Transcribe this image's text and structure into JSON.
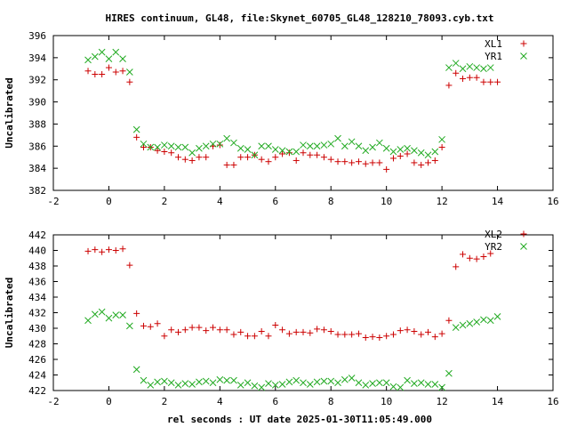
{
  "title": "HIRES continuum, GL48, file:Skynet_60705_GL48_128210_78093.cyb.txt",
  "xlabel": "rel seconds : UT date 2025-01-30T11:05:49.000",
  "colors": {
    "L": "#cc0000",
    "R": "#22aa22"
  },
  "chart_data": [
    {
      "type": "scatter",
      "ylabel": "Uncalibrated",
      "xlim": [
        -2,
        16
      ],
      "ylim": [
        382,
        396
      ],
      "xticks": [
        "-2",
        "0",
        "2",
        "4",
        "6",
        "8",
        "10",
        "12",
        "14",
        "16"
      ],
      "yticks": [
        "382",
        "384",
        "386",
        "388",
        "390",
        "392",
        "394",
        "396"
      ],
      "series": [
        {
          "name": "XL1",
          "marker": "plus",
          "x": [
            -0.75,
            -0.5,
            -0.25,
            0.0,
            0.25,
            0.5,
            0.75,
            1.0,
            1.25,
            1.5,
            1.75,
            2.0,
            2.25,
            2.5,
            2.75,
            3.0,
            3.25,
            3.5,
            3.75,
            4.0,
            4.25,
            4.5,
            4.75,
            5.0,
            5.25,
            5.5,
            5.75,
            6.0,
            6.25,
            6.5,
            6.75,
            7.0,
            7.25,
            7.5,
            7.75,
            8.0,
            8.25,
            8.5,
            8.75,
            9.0,
            9.25,
            9.5,
            9.75,
            10.0,
            10.25,
            10.5,
            10.75,
            11.0,
            11.25,
            11.5,
            11.75,
            12.0,
            12.25,
            12.5,
            12.75,
            13.0,
            13.25,
            13.5,
            13.75,
            14.0
          ],
          "y": [
            392.8,
            392.5,
            392.5,
            393.1,
            392.7,
            392.8,
            391.8,
            386.8,
            385.9,
            385.9,
            385.6,
            385.5,
            385.4,
            385.0,
            384.8,
            384.7,
            385.0,
            385.0,
            386.0,
            386.1,
            384.3,
            384.3,
            385.0,
            385.0,
            385.2,
            384.8,
            384.6,
            385.0,
            385.3,
            385.4,
            384.7,
            385.4,
            385.2,
            385.2,
            385.0,
            384.8,
            384.6,
            384.6,
            384.5,
            384.6,
            384.4,
            384.5,
            384.5,
            383.9,
            384.9,
            385.1,
            385.3,
            384.5,
            384.3,
            384.5,
            384.7,
            385.9,
            391.5,
            392.6,
            392.1,
            392.2,
            392.2,
            391.8,
            391.8,
            391.8
          ]
        },
        {
          "name": "YR1",
          "marker": "cross",
          "x": [
            -0.75,
            -0.5,
            -0.25,
            0.0,
            0.25,
            0.5,
            0.75,
            1.0,
            1.25,
            1.5,
            1.75,
            2.0,
            2.25,
            2.5,
            2.75,
            3.0,
            3.25,
            3.5,
            3.75,
            4.0,
            4.25,
            4.5,
            4.75,
            5.0,
            5.25,
            5.5,
            5.75,
            6.0,
            6.25,
            6.5,
            6.75,
            7.0,
            7.25,
            7.5,
            7.75,
            8.0,
            8.25,
            8.5,
            8.75,
            9.0,
            9.25,
            9.5,
            9.75,
            10.0,
            10.25,
            10.5,
            10.75,
            11.0,
            11.25,
            11.5,
            11.75,
            12.0,
            12.25,
            12.5,
            12.75,
            13.0,
            13.25,
            13.5,
            13.75
          ],
          "y": [
            393.8,
            394.1,
            394.5,
            393.9,
            394.5,
            393.9,
            392.7,
            387.5,
            386.2,
            385.9,
            385.9,
            386.1,
            386.0,
            385.9,
            385.9,
            385.4,
            385.8,
            386.0,
            386.2,
            386.2,
            386.7,
            386.3,
            385.8,
            385.7,
            385.2,
            386.0,
            386.0,
            385.7,
            385.6,
            385.5,
            385.5,
            386.1,
            386.0,
            386.0,
            386.1,
            386.2,
            386.7,
            386.0,
            386.4,
            386.0,
            385.6,
            385.9,
            386.3,
            385.8,
            385.5,
            385.7,
            385.8,
            385.6,
            385.4,
            385.2,
            385.5,
            386.6,
            393.1,
            393.5,
            393.0,
            393.2,
            393.1,
            393.0,
            393.1
          ]
        }
      ]
    },
    {
      "type": "scatter",
      "ylabel": "Uncalibrated",
      "xlim": [
        -2,
        16
      ],
      "ylim": [
        422,
        442
      ],
      "xticks": [
        "-2",
        "0",
        "2",
        "4",
        "6",
        "8",
        "10",
        "12",
        "14",
        "16"
      ],
      "yticks": [
        "422",
        "424",
        "426",
        "428",
        "430",
        "432",
        "434",
        "436",
        "438",
        "440",
        "442"
      ],
      "series": [
        {
          "name": "XL2",
          "marker": "plus",
          "x": [
            -0.75,
            -0.5,
            -0.25,
            0.0,
            0.25,
            0.5,
            0.75,
            1.0,
            1.25,
            1.5,
            1.75,
            2.0,
            2.25,
            2.5,
            2.75,
            3.0,
            3.25,
            3.5,
            3.75,
            4.0,
            4.25,
            4.5,
            4.75,
            5.0,
            5.25,
            5.5,
            5.75,
            6.0,
            6.25,
            6.5,
            6.75,
            7.0,
            7.25,
            7.5,
            7.75,
            8.0,
            8.25,
            8.5,
            8.75,
            9.0,
            9.25,
            9.5,
            9.75,
            10.0,
            10.25,
            10.5,
            10.75,
            11.0,
            11.25,
            11.5,
            11.75,
            12.0,
            12.25,
            12.5,
            12.75,
            13.0,
            13.25,
            13.5,
            13.75
          ],
          "y": [
            439.9,
            440.1,
            439.8,
            440.1,
            440.0,
            440.2,
            438.1,
            431.9,
            430.3,
            430.2,
            430.6,
            429.0,
            429.8,
            429.5,
            429.8,
            430.1,
            430.1,
            429.7,
            430.1,
            429.8,
            429.8,
            429.2,
            429.5,
            429.0,
            429.0,
            429.6,
            429.0,
            430.4,
            429.8,
            429.3,
            429.5,
            429.5,
            429.4,
            429.9,
            429.8,
            429.6,
            429.2,
            429.2,
            429.2,
            429.3,
            428.8,
            428.9,
            428.8,
            429.0,
            429.2,
            429.7,
            429.8,
            429.6,
            429.2,
            429.5,
            428.9,
            429.3,
            431.0,
            437.9,
            439.5,
            439.0,
            438.9,
            439.2,
            439.6
          ]
        },
        {
          "name": "YR2",
          "marker": "cross",
          "x": [
            -0.75,
            -0.5,
            -0.25,
            0.0,
            0.25,
            0.5,
            0.75,
            1.0,
            1.25,
            1.5,
            1.75,
            2.0,
            2.25,
            2.5,
            2.75,
            3.0,
            3.25,
            3.5,
            3.75,
            4.0,
            4.25,
            4.5,
            4.75,
            5.0,
            5.25,
            5.5,
            5.75,
            6.0,
            6.25,
            6.5,
            6.75,
            7.0,
            7.25,
            7.5,
            7.75,
            8.0,
            8.25,
            8.5,
            8.75,
            9.0,
            9.25,
            9.5,
            9.75,
            10.0,
            10.25,
            10.5,
            10.75,
            11.0,
            11.25,
            11.5,
            11.75,
            12.0,
            12.25,
            12.5,
            12.75,
            13.0,
            13.25,
            13.5,
            13.75,
            14.0
          ],
          "y": [
            431.0,
            431.8,
            432.1,
            431.3,
            431.7,
            431.7,
            430.3,
            424.7,
            423.3,
            422.7,
            423.1,
            423.2,
            423.0,
            422.7,
            422.9,
            422.8,
            423.1,
            423.2,
            423.0,
            423.4,
            423.3,
            423.3,
            422.7,
            423.0,
            422.6,
            422.4,
            422.9,
            422.7,
            422.8,
            423.1,
            423.3,
            423.0,
            422.8,
            423.1,
            423.2,
            423.2,
            423.0,
            423.4,
            423.6,
            423.0,
            422.7,
            422.9,
            423.0,
            423.0,
            422.5,
            422.4,
            423.3,
            422.9,
            423.0,
            422.8,
            422.8,
            422.4,
            424.2,
            430.1,
            430.4,
            430.6,
            430.8,
            431.1,
            431.0,
            431.5
          ]
        }
      ]
    }
  ]
}
